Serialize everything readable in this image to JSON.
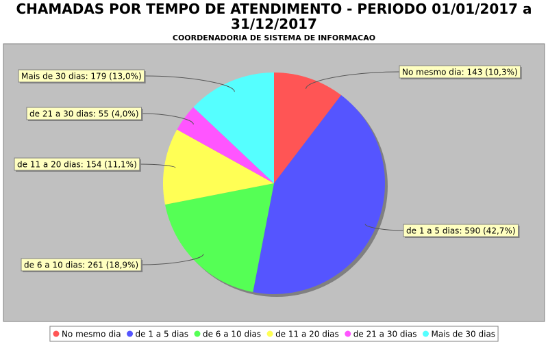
{
  "chart_data": {
    "type": "pie",
    "title": "CHAMADAS POR TEMPO DE ATENDIMENTO - PERIODO 01/01/2017 a 31/12/2017",
    "subtitle": "COORDENADORIA DE SISTEMA DE INFORMACAO",
    "categories": [
      "No mesmo dia",
      "de 1 a 5 dias",
      "de 6 a 10 dias",
      "de 11 a 20 dias",
      "de 21 a 30 dias",
      "Mais de 30 dias"
    ],
    "values": [
      143,
      590,
      261,
      154,
      55,
      179
    ],
    "value_labels": [
      "No mesmo dia: 143 (10,3%)",
      "de 1 a 5 dias: 590 (42,7%)",
      "de 6 a 10 dias: 261 (18,9%)",
      "de 11 a 20 dias: 154 (11,1%)",
      "de 21 a 30 dias: 55 (4,0%)",
      "Mais de 30 dias: 179 (13,0%)"
    ],
    "colors": [
      "#ff5555",
      "#5555ff",
      "#55ff55",
      "#ffff55",
      "#ff55ff",
      "#55ffff"
    ],
    "legend": "bottom"
  }
}
